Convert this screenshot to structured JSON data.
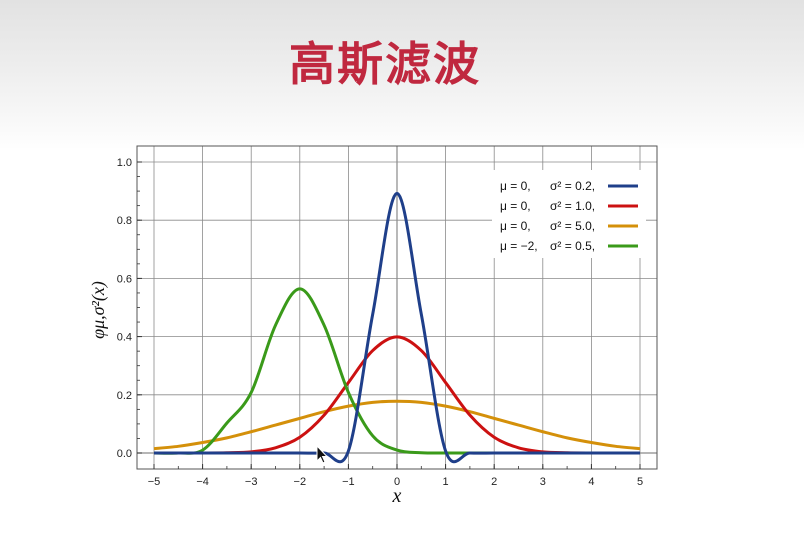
{
  "slide": {
    "title": "高斯滤波"
  },
  "colors": {
    "title": "#c0283f",
    "grid": "#8a8a8a",
    "frame": "#555555"
  },
  "cursor_icon": "arrow-cursor-icon",
  "chart_data": {
    "type": "line",
    "title": "",
    "xlabel": "x",
    "ylabel": "φμ,σ²(x)",
    "xlim": [
      -5,
      5
    ],
    "ylim": [
      0,
      1.0
    ],
    "x_ticks": [
      -5,
      -4,
      -3,
      -2,
      -1,
      0,
      1,
      2,
      3,
      4,
      5
    ],
    "x_tick_labels": [
      "−5",
      "−4",
      "−3",
      "−2",
      "−1",
      "0",
      "1",
      "2",
      "3",
      "4",
      "5"
    ],
    "y_ticks": [
      0.0,
      0.2,
      0.4,
      0.6,
      0.8,
      1.0
    ],
    "y_tick_labels": [
      "0.0",
      "0.2",
      "0.4",
      "0.6",
      "0.8",
      "1.0"
    ],
    "grid": true,
    "legend_position": "top-right",
    "x": [
      -5,
      -4.5,
      -4,
      -3.5,
      -3,
      -2.5,
      -2,
      -1.5,
      -1,
      -0.5,
      0,
      0.5,
      1,
      1.5,
      2,
      2.5,
      3,
      3.5,
      4,
      4.5,
      5
    ],
    "series": [
      {
        "mu_label": "μ = 0,",
        "sigma_label": "σ² = 0.2,",
        "color": "#1f3f8a",
        "values": [
          0.0,
          0.0,
          0.0,
          0.0,
          0.0,
          0.0,
          0.0,
          0.0,
          0.007,
          0.477,
          0.892,
          0.477,
          0.007,
          0.0,
          0.0,
          0.0,
          0.0,
          0.0,
          0.0,
          0.0,
          0.0
        ]
      },
      {
        "mu_label": "μ = 0,",
        "sigma_label": "σ² = 1.0,",
        "color": "#cc1111",
        "values": [
          0.0,
          0.0,
          0.0001,
          0.0009,
          0.004,
          0.018,
          0.054,
          0.13,
          0.242,
          0.352,
          0.399,
          0.352,
          0.242,
          0.13,
          0.054,
          0.018,
          0.004,
          0.0009,
          0.0001,
          0.0,
          0.0
        ]
      },
      {
        "mu_label": "μ = 0,",
        "sigma_label": "σ² = 5.0,",
        "color": "#d4900a",
        "values": [
          0.015,
          0.023,
          0.036,
          0.052,
          0.073,
          0.096,
          0.119,
          0.142,
          0.161,
          0.174,
          0.178,
          0.174,
          0.161,
          0.142,
          0.119,
          0.096,
          0.073,
          0.052,
          0.036,
          0.023,
          0.015
        ]
      },
      {
        "mu_label": "μ = −2,",
        "sigma_label": "σ² = 0.5,",
        "color": "#3a9a1a",
        "values": [
          0.0,
          0.0,
          0.01,
          0.103,
          0.208,
          0.439,
          0.564,
          0.439,
          0.208,
          0.059,
          0.01,
          0.001,
          0.0,
          0.0,
          0.0,
          0.0,
          0.0,
          0.0,
          0.0,
          0.0,
          0.0
        ]
      }
    ]
  }
}
